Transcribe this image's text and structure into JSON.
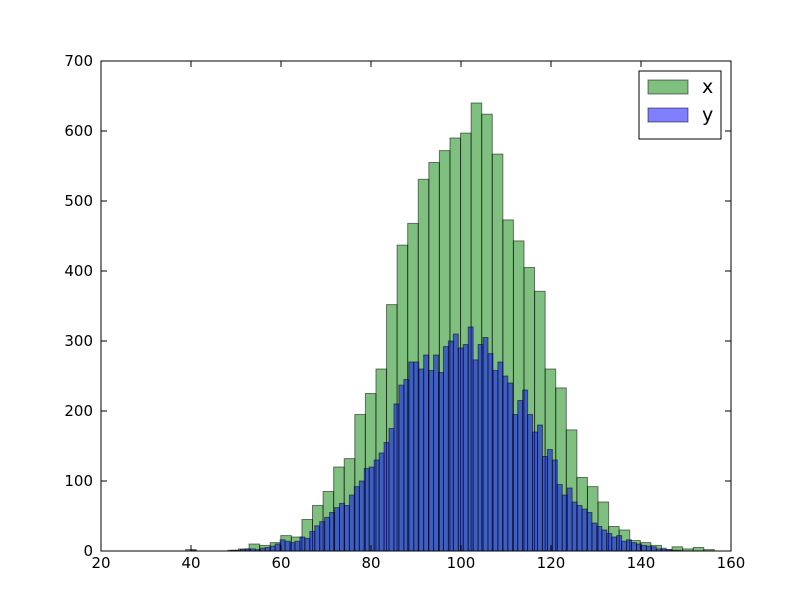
{
  "chart_data": {
    "type": "histogram",
    "xlim": [
      20,
      160
    ],
    "xticks": [
      20,
      40,
      60,
      80,
      100,
      120,
      140,
      160
    ],
    "ylim": [
      0,
      700
    ],
    "yticks": [
      0,
      100,
      200,
      300,
      400,
      500,
      600,
      700
    ],
    "legend": "upper right",
    "alpha": 0.5,
    "series": [
      {
        "name": "x",
        "color": "#008000",
        "bins": [
          38.8,
          41.15,
          43.5,
          45.85,
          48.2,
          50.55,
          52.9,
          55.25,
          57.6,
          59.95,
          62.3,
          64.65,
          67,
          69.35,
          71.7,
          74.05,
          76.4,
          78.75,
          81.1,
          83.45,
          85.8,
          88.15,
          90.5,
          92.85,
          95.2,
          97.55,
          99.9,
          102.25,
          104.6,
          106.95,
          109.3,
          111.65,
          114,
          116.35,
          118.7,
          121.05,
          123.4,
          125.75,
          128.1,
          130.45,
          132.8,
          135.15,
          137.5,
          139.85,
          142.2,
          144.55,
          146.9,
          149.25,
          151.6,
          153.95,
          156.3
        ],
        "values": [
          2,
          0,
          0,
          0,
          1,
          3,
          10,
          8,
          12,
          22,
          20,
          45,
          65,
          85,
          120,
          132,
          195,
          225,
          260,
          352,
          437,
          468,
          531,
          555,
          572,
          590,
          597,
          640,
          624,
          567,
          473,
          443,
          405,
          371,
          260,
          233,
          173,
          105,
          92,
          70,
          35,
          30,
          15,
          12,
          8,
          2,
          6,
          3,
          5,
          2
        ]
      },
      {
        "name": "y",
        "color": "#0000ff",
        "bins": [
          40,
          41.1,
          42.2,
          43.3,
          44.4,
          45.5,
          46.6,
          47.7,
          48.8,
          49.9,
          51,
          52.1,
          53.2,
          54.3,
          55.4,
          56.5,
          57.6,
          58.7,
          59.8,
          60.9,
          62,
          63.1,
          64.2,
          65.3,
          66.4,
          67.5,
          68.6,
          69.7,
          70.8,
          71.9,
          73,
          74.1,
          75.2,
          76.3,
          77.4,
          78.5,
          79.6,
          80.7,
          81.8,
          82.9,
          84,
          85.1,
          86.2,
          87.3,
          88.4,
          89.5,
          90.6,
          91.7,
          92.8,
          93.9,
          95,
          96.1,
          97.2,
          98.3,
          99.4,
          100.5,
          101.6,
          102.7,
          103.8,
          104.9,
          106,
          107.1,
          108.2,
          109.3,
          110.4,
          111.5,
          112.6,
          113.7,
          114.8,
          115.9,
          117,
          118.1,
          119.2,
          120.3,
          121.4,
          122.5,
          123.6,
          124.7,
          125.8,
          126.9,
          128,
          129.1,
          130.2,
          131.3,
          132.4,
          133.5,
          134.6,
          135.7,
          136.8,
          137.9,
          139,
          140.1,
          141.2,
          142.3,
          143.4,
          144.5,
          145.6,
          146.7,
          147.8,
          148.9,
          150
        ],
        "values": [
          1,
          0,
          0,
          0,
          0,
          0,
          0,
          0,
          1,
          1,
          2,
          3,
          3,
          2,
          4,
          5,
          7,
          10,
          16,
          14,
          12,
          14,
          20,
          18,
          28,
          36,
          42,
          48,
          55,
          62,
          68,
          65,
          80,
          92,
          100,
          118,
          120,
          130,
          140,
          155,
          175,
          210,
          237,
          245,
          270,
          270,
          260,
          280,
          258,
          280,
          255,
          292,
          300,
          310,
          290,
          295,
          320,
          273,
          295,
          305,
          282,
          258,
          270,
          250,
          240,
          195,
          215,
          230,
          195,
          170,
          180,
          135,
          145,
          130,
          95,
          80,
          90,
          70,
          65,
          60,
          55,
          40,
          35,
          30,
          25,
          20,
          22,
          14,
          16,
          12,
          10,
          8,
          7,
          6,
          3,
          4,
          2,
          1,
          1,
          0
        ]
      }
    ]
  }
}
